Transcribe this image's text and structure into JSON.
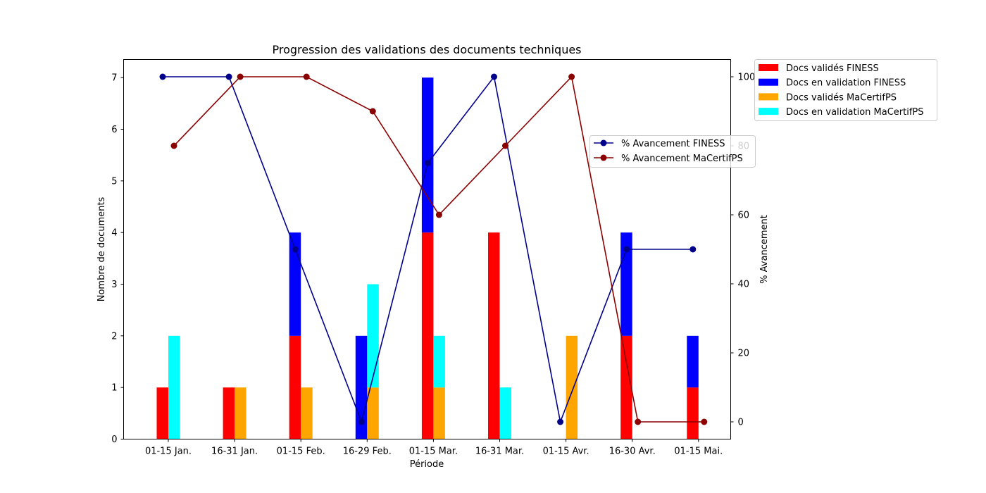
{
  "chart_data": {
    "type": "bar",
    "title": "Progression des validations des documents techniques",
    "xlabel": "Période",
    "ylabel": "Nombre de documents",
    "y2label": "% Avancement",
    "categories": [
      "01-15 Jan.",
      "16-31 Jan.",
      "01-15 Feb.",
      "16-29 Feb.",
      "01-15 Mar.",
      "16-31 Mar.",
      "01-15 Avr.",
      "16-30 Avr.",
      "01-15 Mai."
    ],
    "ylim": [
      0,
      7.35
    ],
    "y2lim": [
      -5,
      105
    ],
    "yticks": [
      0,
      1,
      2,
      3,
      4,
      5,
      6,
      7
    ],
    "y2ticks": [
      0,
      20,
      40,
      60,
      80,
      100
    ],
    "grid": false,
    "bar_series": [
      {
        "name": "Docs validés FINESS",
        "group": "FINESS",
        "values": [
          1,
          1,
          2,
          0,
          4,
          4,
          0,
          2,
          1
        ],
        "color": "#ff0000"
      },
      {
        "name": "Docs en validation FINESS",
        "group": "FINESS",
        "values": [
          0,
          0,
          2,
          2,
          3,
          0,
          0,
          2,
          1
        ],
        "color": "#0000ff"
      },
      {
        "name": "Docs validés MaCertifPS",
        "group": "MaCertifPS",
        "values": [
          0,
          1,
          1,
          1,
          1,
          0,
          2,
          0,
          0
        ],
        "color": "#ffa500"
      },
      {
        "name": "Docs en validation MaCertifPS",
        "group": "MaCertifPS",
        "values": [
          2,
          0,
          0,
          2,
          1,
          1,
          0,
          0,
          0
        ],
        "color": "#00ffff"
      }
    ],
    "line_series": [
      {
        "name": "% Avancement FINESS",
        "values": [
          100,
          100,
          50,
          0,
          75,
          100,
          0,
          50,
          50
        ],
        "color": "#00008b"
      },
      {
        "name": "% Avancement MaCertifPS",
        "values": [
          80,
          100,
          100,
          90,
          60,
          80,
          100,
          0,
          0
        ],
        "color": "#8b0000"
      }
    ],
    "legend_bars_placement": "outside-top-right",
    "legend_lines_placement": "right"
  }
}
